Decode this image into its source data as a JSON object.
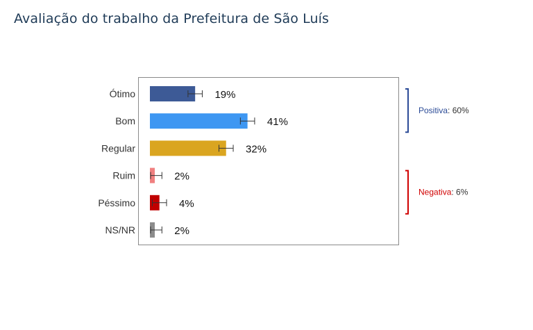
{
  "page": {
    "title": "Avaliação do trabalho da Prefeitura de São Luís"
  },
  "chart_data": {
    "type": "bar",
    "orientation": "horizontal",
    "title": "Avaliação do trabalho da Prefeitura de São Luís",
    "categories": [
      "Ótimo",
      "Bom",
      "Regular",
      "Ruim",
      "Péssimo",
      "NS/NR"
    ],
    "values": [
      19,
      41,
      32,
      2,
      4,
      2
    ],
    "value_labels": [
      "19%",
      "41%",
      "32%",
      "2%",
      "4%",
      "2%"
    ],
    "error_margin": 3,
    "colors": [
      "#3d5a96",
      "#3e97f2",
      "#daa520",
      "#f08080",
      "#c00000",
      "#8c8c8c"
    ],
    "xlim": [
      0,
      100
    ],
    "grid": false,
    "legend": "none",
    "groups": [
      {
        "name": "Positiva",
        "sep": ": ",
        "value_label": "60%",
        "color": "#2a4a96",
        "categories": [
          "Ótimo",
          "Bom"
        ]
      },
      {
        "name": "Negativa",
        "sep": ": ",
        "value_label": "6%",
        "color": "#d00000",
        "categories": [
          "Ruim",
          "Péssimo"
        ]
      }
    ]
  }
}
